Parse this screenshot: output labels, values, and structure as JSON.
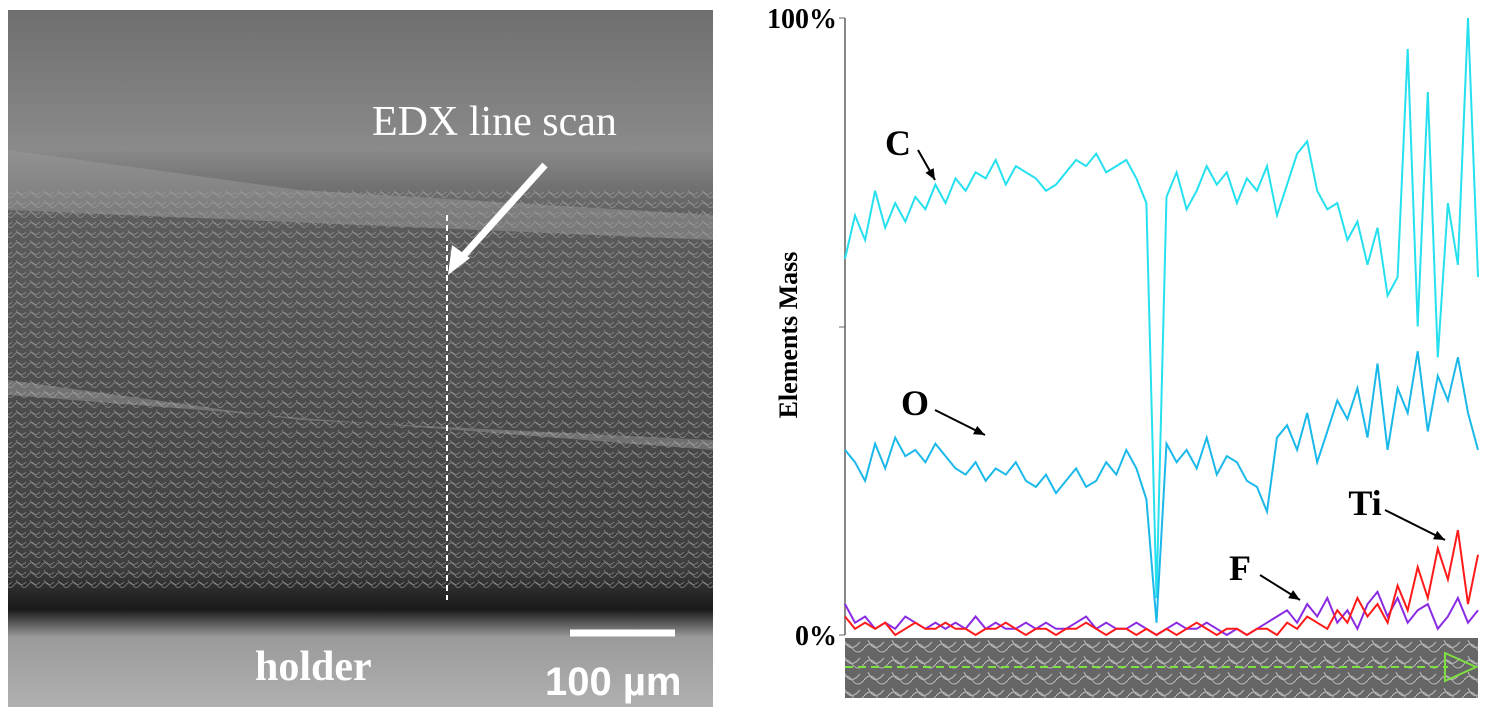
{
  "image_labels": {
    "line_scan": "EDX line scan",
    "holder": "holder",
    "scale_bar": "100 µm"
  },
  "chart_data": {
    "type": "line",
    "y_label": "Elements Mass",
    "ylim": [
      0,
      100
    ],
    "yticks": [
      {
        "value": 0,
        "label": "0%"
      },
      {
        "value": 100,
        "label": "100%"
      }
    ],
    "series": [
      {
        "name": "C",
        "color": "#25e0ee",
        "values": [
          61,
          68,
          64,
          72,
          66,
          70,
          67,
          71,
          69,
          73,
          70,
          74,
          72,
          75,
          74,
          77,
          73,
          76,
          75,
          74,
          72,
          73,
          75,
          77,
          76,
          78,
          75,
          76,
          77,
          74,
          70,
          6,
          71,
          75,
          69,
          72,
          76,
          73,
          75,
          70,
          74,
          72,
          76,
          68,
          73,
          78,
          80,
          72,
          69,
          70,
          64,
          67,
          60,
          66,
          55,
          58,
          95,
          50,
          88,
          45,
          70,
          60,
          100,
          58
        ]
      },
      {
        "name": "O",
        "color": "#1bb8ea",
        "values": [
          30,
          28,
          25,
          31,
          27,
          32,
          29,
          30,
          28,
          31,
          29,
          27,
          26,
          28,
          25,
          27,
          26,
          28,
          25,
          24,
          26,
          23,
          25,
          27,
          24,
          25,
          28,
          26,
          30,
          27,
          22,
          2,
          31,
          28,
          30,
          27,
          32,
          26,
          29,
          28,
          25,
          24,
          20,
          32,
          34,
          30,
          36,
          28,
          33,
          38,
          35,
          40,
          32,
          44,
          30,
          40,
          36,
          46,
          33,
          42,
          38,
          45,
          36,
          30
        ]
      },
      {
        "name": "F",
        "color": "#8a2be2",
        "values": [
          5,
          2,
          3,
          1,
          2,
          1,
          3,
          2,
          1,
          2,
          1,
          2,
          1,
          3,
          1,
          2,
          1,
          1,
          2,
          1,
          2,
          1,
          1,
          2,
          3,
          1,
          2,
          1,
          1,
          2,
          1,
          0,
          1,
          2,
          1,
          1,
          2,
          1,
          0,
          1,
          0,
          1,
          2,
          3,
          4,
          2,
          5,
          3,
          6,
          2,
          4,
          1,
          5,
          7,
          3,
          6,
          2,
          4,
          5,
          1,
          3,
          6,
          2,
          4
        ]
      },
      {
        "name": "Ti",
        "color": "#ff1a1a",
        "values": [
          3,
          1,
          2,
          1,
          2,
          0,
          1,
          2,
          1,
          1,
          2,
          1,
          1,
          0,
          1,
          1,
          2,
          1,
          0,
          1,
          1,
          0,
          1,
          1,
          2,
          1,
          0,
          1,
          1,
          0,
          1,
          0,
          1,
          0,
          1,
          2,
          1,
          0,
          1,
          1,
          0,
          1,
          1,
          0,
          2,
          1,
          3,
          2,
          1,
          4,
          2,
          6,
          3,
          5,
          2,
          8,
          4,
          11,
          6,
          14,
          9,
          17,
          5,
          13
        ]
      }
    ]
  }
}
